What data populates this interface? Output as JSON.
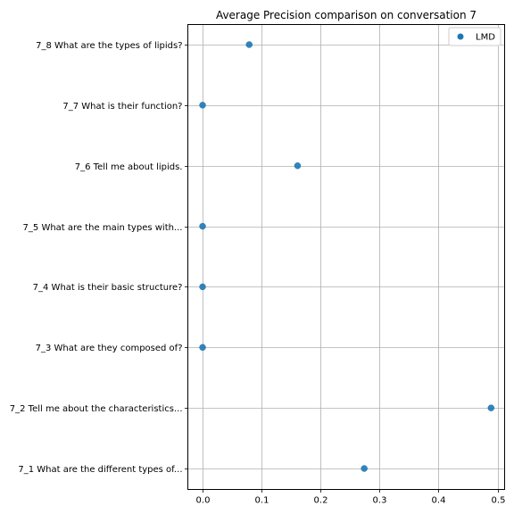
{
  "chart_data": {
    "type": "scatter",
    "title": "Average Precision comparison on conversation 7",
    "xlabel": "",
    "ylabel": "",
    "xlim": [
      -0.025,
      0.512
    ],
    "xticks": [
      0.0,
      0.1,
      0.2,
      0.3,
      0.4,
      0.5
    ],
    "xtick_labels": [
      "0.0",
      "0.1",
      "0.2",
      "0.3",
      "0.4",
      "0.5"
    ],
    "categories": [
      "7_1 What are the different types of...",
      "7_2 Tell me about the characteristics...",
      "7_3 What are they composed of?",
      "7_4 What is their basic structure?",
      "7_5 What are the main types with...",
      "7_6 Tell me about lipids.",
      "7_7 What is their function?",
      "7_8 What are the types of lipids?"
    ],
    "series": [
      {
        "name": "LMD",
        "color": "#1f77b4",
        "values": [
          0.274,
          0.489,
          0.0,
          0.0,
          0.0,
          0.161,
          0.0,
          0.079
        ]
      }
    ],
    "grid": true,
    "legend_position": "top-right"
  }
}
